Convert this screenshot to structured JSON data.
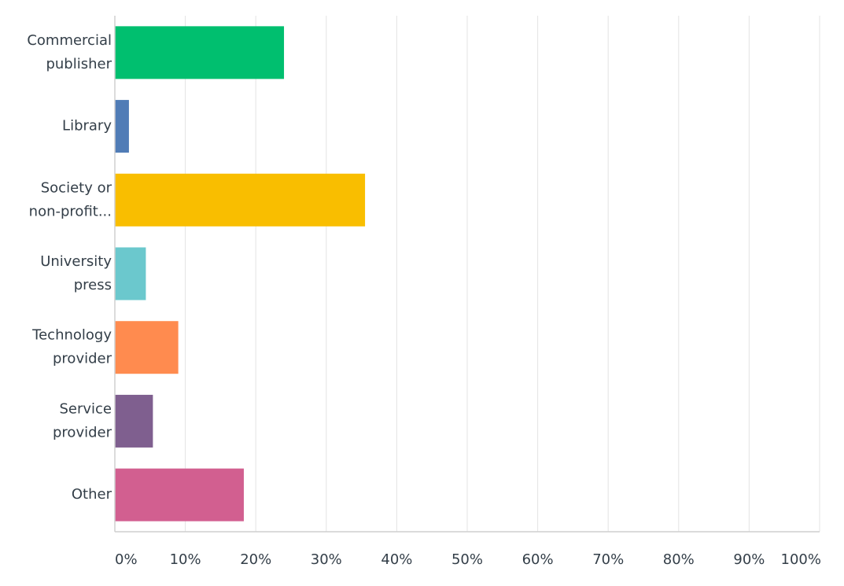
{
  "chart_data": {
    "type": "bar",
    "orientation": "horizontal",
    "categories": [
      [
        "Commercial",
        "publisher"
      ],
      [
        "Library"
      ],
      [
        "Society or",
        "non-profit..."
      ],
      [
        "University",
        "press"
      ],
      [
        "Technology",
        "provider"
      ],
      [
        "Service",
        "provider"
      ],
      [
        "Other"
      ]
    ],
    "values": [
      24.0,
      2.0,
      35.5,
      4.4,
      9.0,
      5.4,
      18.3
    ],
    "colors": [
      "#00bf6f",
      "#507cb6",
      "#f9be00",
      "#6bc8cd",
      "#ff8b4f",
      "#7f5f8f",
      "#d25f90"
    ],
    "xlim": [
      0,
      100
    ],
    "xticks": [
      0,
      10,
      20,
      30,
      40,
      50,
      60,
      70,
      80,
      90,
      100
    ],
    "xtick_labels": [
      "0%",
      "10%",
      "20%",
      "30%",
      "40%",
      "50%",
      "60%",
      "70%",
      "80%",
      "90%",
      "100%"
    ],
    "grid": true,
    "legend": "none",
    "title": "",
    "xlabel": "",
    "ylabel": ""
  }
}
